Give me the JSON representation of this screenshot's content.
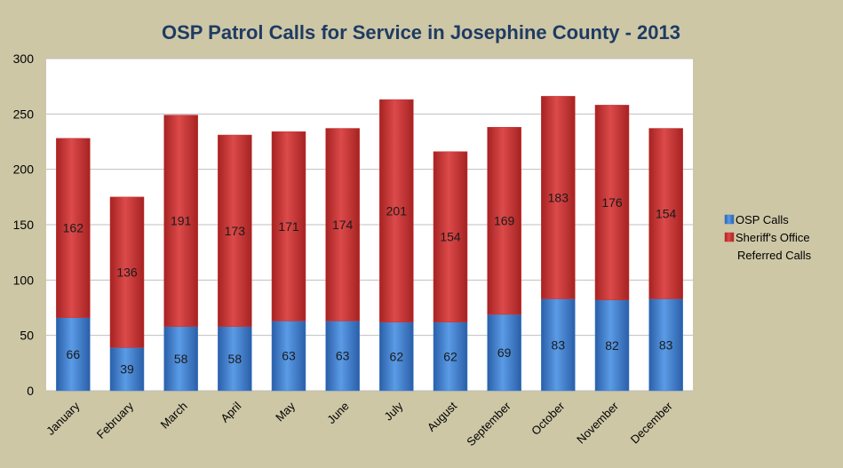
{
  "chart_data": {
    "type": "bar",
    "stacked": true,
    "title": "OSP Patrol Calls for Service in Josephine County - 2013",
    "categories": [
      "January",
      "February",
      "March",
      "April",
      "May",
      "June",
      "July",
      "August",
      "September",
      "October",
      "November",
      "December"
    ],
    "series": [
      {
        "name": "OSP Calls",
        "color": "#3f7fcf",
        "values": [
          66,
          39,
          58,
          58,
          63,
          63,
          62,
          62,
          69,
          83,
          82,
          83
        ]
      },
      {
        "name": "Sheriff's Office Referred Calls",
        "legend_lines": [
          "Sheriff's Office",
          "Referred Calls"
        ],
        "color": "#cc3333",
        "values": [
          162,
          136,
          191,
          173,
          171,
          174,
          201,
          154,
          169,
          183,
          176,
          154
        ]
      }
    ],
    "ylim": [
      0,
      300
    ],
    "yticks": [
      0,
      50,
      100,
      150,
      200,
      250,
      300
    ],
    "grid": true,
    "legend_position": "right"
  }
}
